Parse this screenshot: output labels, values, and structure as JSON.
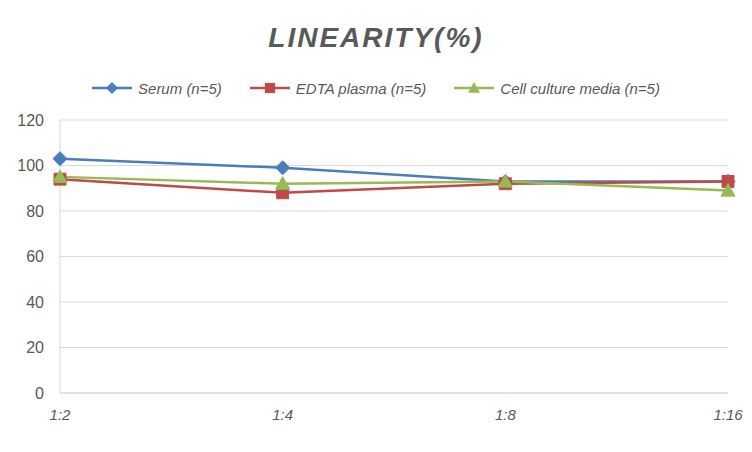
{
  "chart_data": {
    "type": "line",
    "title": "LINEARITY(%)",
    "categories": [
      "1:2",
      "1:4",
      "1:8",
      "1:16"
    ],
    "series": [
      {
        "name": "Serum (n=5)",
        "color": "#4a7ebb",
        "marker": "diamond",
        "values": [
          103,
          99,
          93,
          93
        ]
      },
      {
        "name": "EDTA plasma (n=5)",
        "color": "#be4b48",
        "marker": "square",
        "values": [
          94,
          88,
          92,
          93
        ]
      },
      {
        "name": "Cell culture media (n=5)",
        "color": "#98b954",
        "marker": "triangle",
        "values": [
          95,
          92,
          93,
          89
        ]
      }
    ],
    "ylim": [
      0,
      120
    ],
    "yticks": [
      0,
      20,
      40,
      60,
      80,
      100,
      120
    ],
    "grid": true,
    "legend": "top"
  }
}
